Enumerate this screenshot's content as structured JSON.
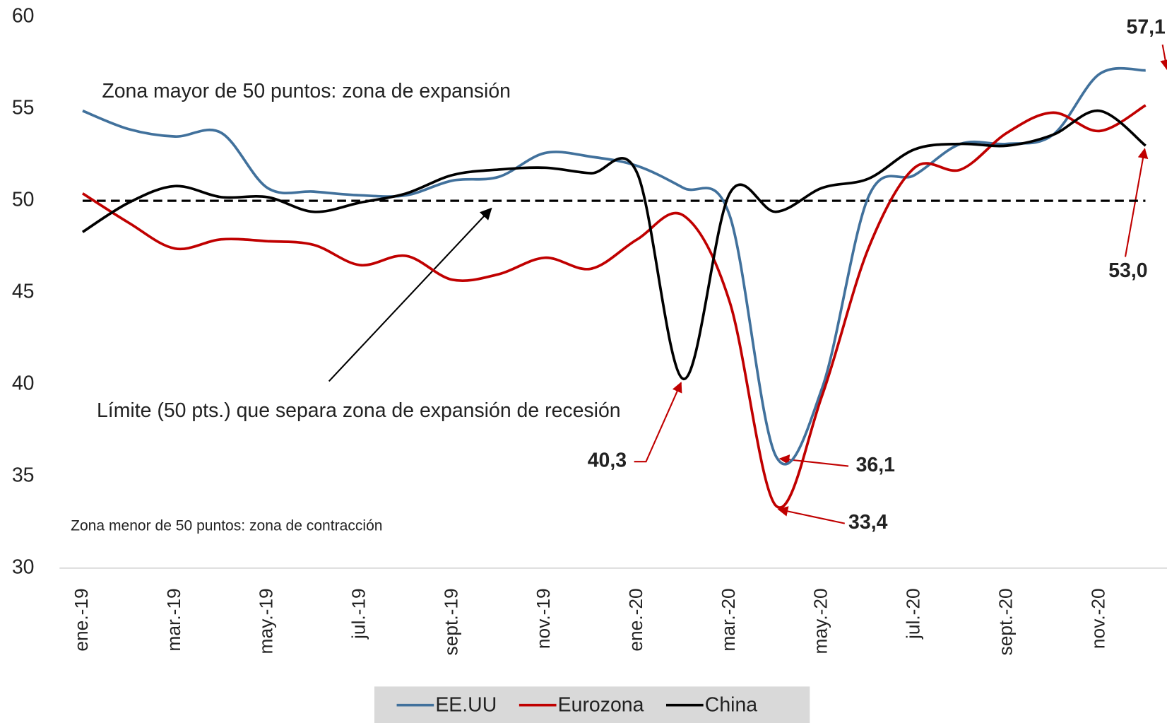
{
  "chart_data": {
    "type": "line",
    "categories": [
      "ene.-19",
      null,
      "mar.-19",
      null,
      "may.-19",
      null,
      "jul.-19",
      null,
      "sept.-19",
      null,
      "nov.-19",
      null,
      "ene.-20",
      null,
      "mar.-20",
      null,
      "may.-20",
      null,
      "jul.-20",
      null,
      "sept.-20",
      null,
      "nov.-20",
      null
    ],
    "series": [
      {
        "name": "EE.UU",
        "color": "#41719c",
        "values": [
          54.9,
          53.9,
          53.5,
          53.7,
          50.7,
          50.5,
          50.3,
          50.3,
          51.1,
          51.3,
          52.6,
          52.4,
          51.9,
          50.7,
          49.2,
          36.1,
          39.8,
          50.2,
          51.4,
          53.1,
          53.1,
          53.6,
          56.9,
          57.1
        ],
        "value_labels": [
          null,
          null,
          null,
          null,
          null,
          null,
          null,
          null,
          null,
          null,
          null,
          null,
          null,
          null,
          null,
          "36,1",
          null,
          null,
          null,
          null,
          null,
          null,
          null,
          "57,1"
        ]
      },
      {
        "name": "Eurozona",
        "color": "#c00000",
        "values": [
          50.4,
          48.8,
          47.4,
          47.9,
          47.8,
          47.6,
          46.5,
          47.0,
          45.7,
          46.0,
          46.9,
          46.3,
          47.9,
          49.2,
          44.5,
          33.4,
          39.4,
          47.4,
          51.8,
          51.7,
          53.7,
          54.8,
          53.8,
          55.2
        ],
        "value_labels": [
          null,
          null,
          null,
          null,
          null,
          null,
          null,
          null,
          null,
          null,
          null,
          null,
          null,
          null,
          null,
          "33,4",
          null,
          null,
          null,
          null,
          null,
          null,
          null,
          null
        ]
      },
      {
        "name": "China",
        "color": "#000000",
        "values": [
          48.3,
          49.9,
          50.8,
          50.2,
          50.2,
          49.4,
          49.9,
          50.4,
          51.4,
          51.7,
          51.8,
          51.5,
          51.5,
          40.3,
          50.4,
          49.4,
          50.7,
          51.2,
          52.8,
          53.1,
          53.0,
          53.6,
          54.9,
          53.0
        ],
        "value_labels": [
          null,
          null,
          null,
          null,
          null,
          null,
          null,
          null,
          null,
          null,
          null,
          null,
          null,
          "40,3",
          null,
          null,
          null,
          null,
          null,
          null,
          null,
          null,
          null,
          "53,0"
        ]
      }
    ],
    "ylim": [
      30,
      60
    ],
    "yticks": [
      30,
      35,
      40,
      45,
      50,
      55,
      60
    ],
    "grid": false,
    "reference_line": 50,
    "annotations": [
      "Zona mayor de 50 puntos: zona de expansión",
      "Límite (50 pts.) que separa zona de expansión de recesión",
      "Zona menor de 50 puntos: zona de contracción"
    ],
    "legend": "bottom"
  }
}
